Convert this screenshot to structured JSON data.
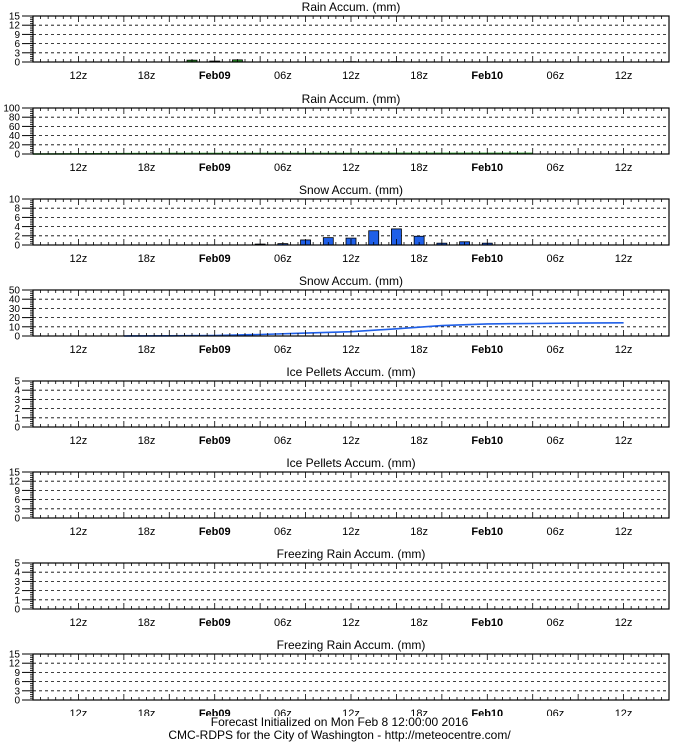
{
  "x_labels": [
    {
      "label": "12z",
      "bold": false
    },
    {
      "label": "18z",
      "bold": false
    },
    {
      "label": "Feb09",
      "bold": true
    },
    {
      "label": "06z",
      "bold": false
    },
    {
      "label": "12z",
      "bold": false
    },
    {
      "label": "18z",
      "bold": false
    },
    {
      "label": "Feb10",
      "bold": true
    },
    {
      "label": "06z",
      "bold": false
    },
    {
      "label": "12z",
      "bold": false
    }
  ],
  "footer": {
    "line1": "Forecast Initialized on Mon Feb  8 12:00:00 2016",
    "line2": "CMC-RDPS for the City of Washington - http://meteocentre.com/"
  },
  "chart_data": [
    {
      "type": "bar",
      "title": "Rain Accum. (mm)",
      "ylim": [
        0,
        15
      ],
      "yticks": [
        "15",
        "12",
        "9",
        "6",
        "3",
        "0"
      ],
      "color": "#2a9d2a",
      "values": [
        0,
        0,
        0,
        0,
        0,
        0,
        0,
        0.6,
        0.3,
        0.7,
        0,
        0,
        0,
        0,
        0.1,
        0,
        0.1,
        0,
        0,
        0,
        0,
        0,
        0,
        0,
        0,
        0
      ]
    },
    {
      "type": "line",
      "title": "Rain Accum. (mm)",
      "ylim": [
        0,
        100
      ],
      "yticks": [
        "100",
        "80",
        "60",
        "40",
        "20",
        "0"
      ],
      "color": "#2a9d2a",
      "points": [
        [
          6,
          0
        ],
        [
          24,
          0.8
        ],
        [
          30,
          1.0
        ],
        [
          48,
          1.1
        ],
        [
          72,
          1.2
        ]
      ]
    },
    {
      "type": "bar",
      "title": "Snow Accum. (mm)",
      "ylim": [
        0,
        10
      ],
      "yticks": [
        "10",
        "8",
        "6",
        "4",
        "2",
        "0"
      ],
      "color": "#1f5fe8",
      "values": [
        0,
        0,
        0,
        0,
        0,
        0,
        0,
        0,
        0,
        0,
        0.2,
        0.3,
        1.1,
        1.6,
        1.5,
        3.1,
        3.5,
        1.9,
        0.4,
        0.7,
        0.4,
        0,
        0,
        0,
        0,
        0
      ]
    },
    {
      "type": "line",
      "title": "Snow Accum. (mm)",
      "ylim": [
        0,
        50
      ],
      "yticks": [
        "50",
        "40",
        "30",
        "20",
        "10",
        "0"
      ],
      "color": "#1f5fe8",
      "points": [
        [
          18,
          0
        ],
        [
          24,
          0.2
        ],
        [
          30,
          0.5
        ],
        [
          36,
          1.6
        ],
        [
          42,
          3.2
        ],
        [
          48,
          4.7
        ],
        [
          54,
          7.8
        ],
        [
          60,
          11.3
        ],
        [
          66,
          13.2
        ],
        [
          72,
          13.6
        ],
        [
          78,
          14.0
        ],
        [
          84,
          14.4
        ]
      ]
    },
    {
      "type": "bar",
      "title": "Ice Pellets Accum. (mm)",
      "ylim": [
        0,
        5
      ],
      "yticks": [
        "5",
        "4",
        "3",
        "2",
        "1",
        "0"
      ],
      "color": "#1f5fe8",
      "values": []
    },
    {
      "type": "line",
      "title": "Ice Pellets Accum. (mm)",
      "ylim": [
        0,
        15
      ],
      "yticks": [
        "15",
        "12",
        "9",
        "6",
        "3",
        "0"
      ],
      "color": "#1f5fe8",
      "points": []
    },
    {
      "type": "bar",
      "title": "Freezing Rain Accum. (mm)",
      "ylim": [
        0,
        5
      ],
      "yticks": [
        "5",
        "4",
        "3",
        "2",
        "1",
        "0"
      ],
      "color": "#1f5fe8",
      "values": []
    },
    {
      "type": "line",
      "title": "Freezing Rain Accum. (mm)",
      "ylim": [
        0,
        15
      ],
      "yticks": [
        "15",
        "12",
        "9",
        "6",
        "3",
        "0"
      ],
      "color": "#1f5fe8",
      "points": []
    }
  ]
}
